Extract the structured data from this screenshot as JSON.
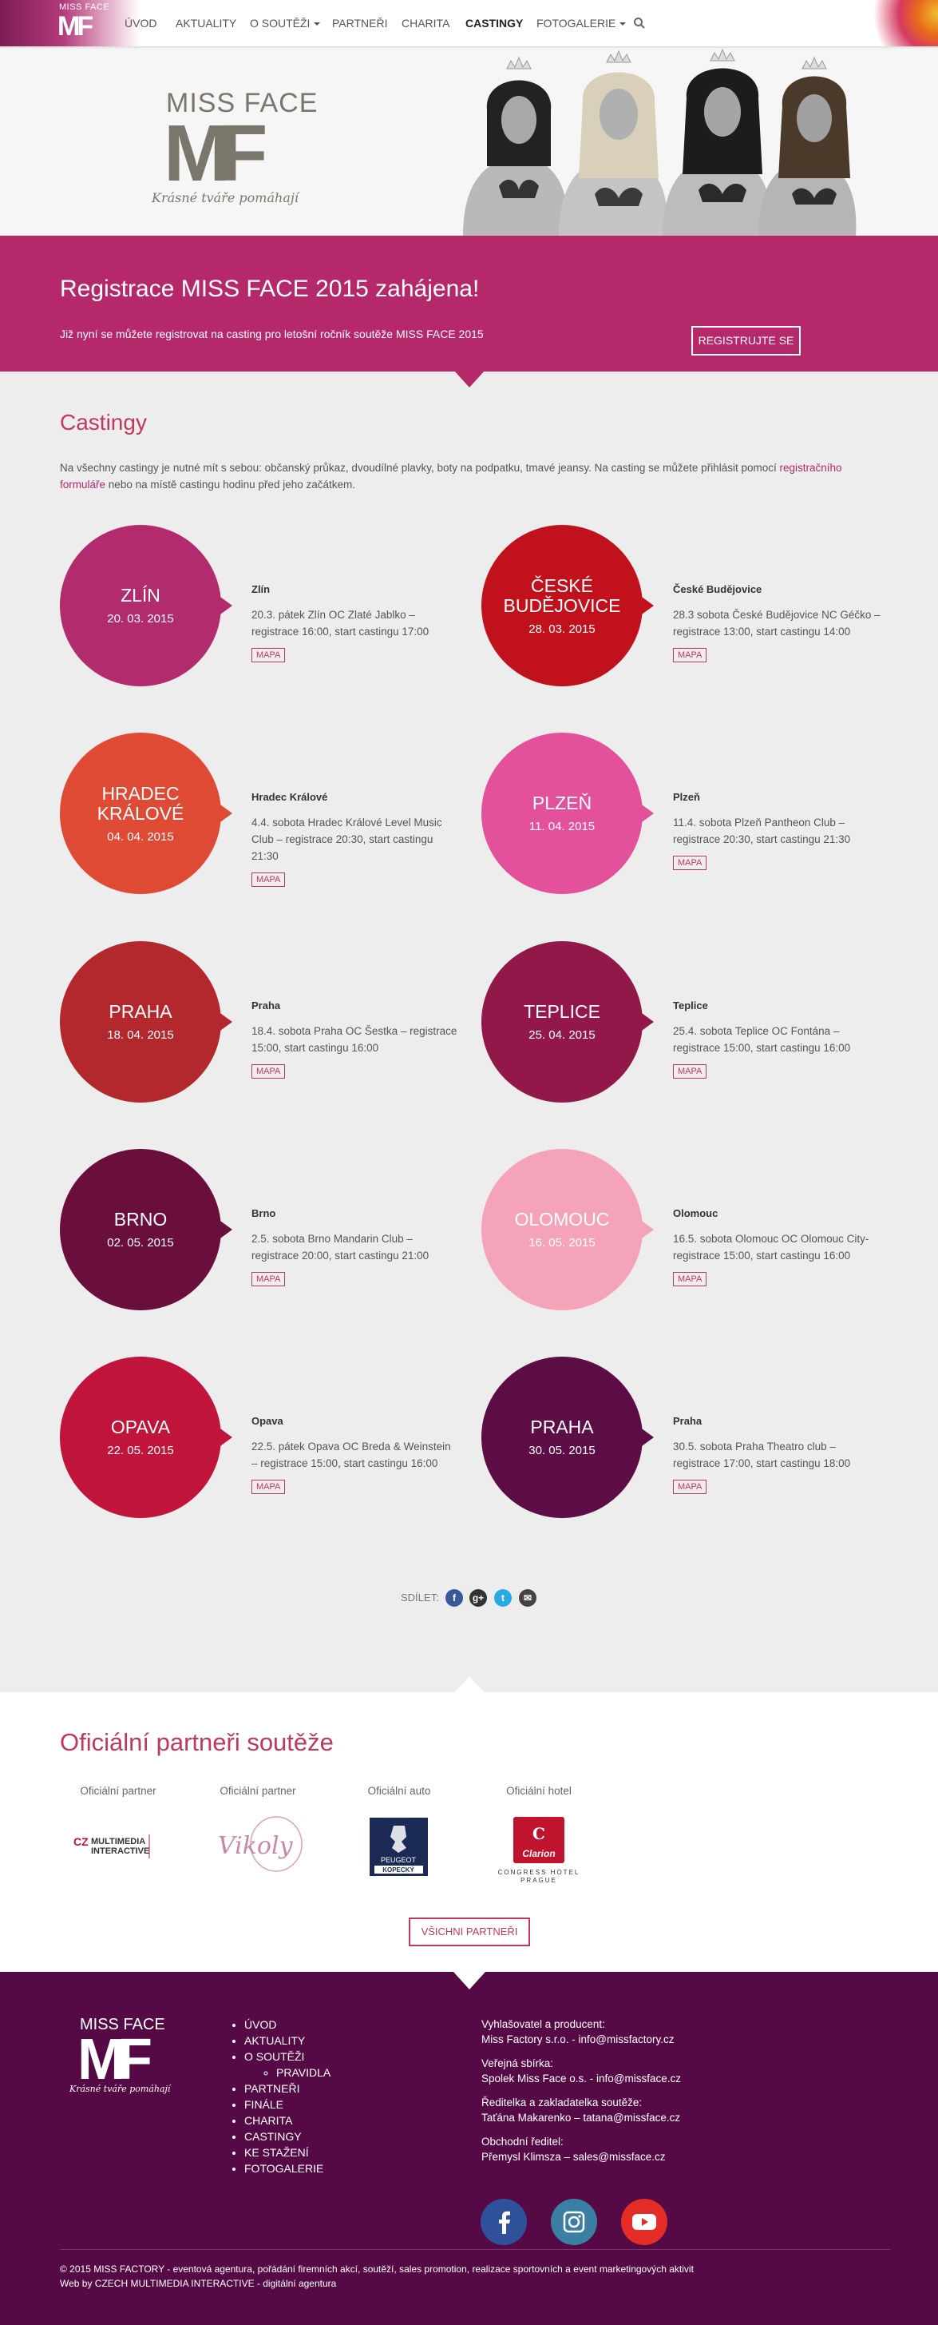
{
  "nav": {
    "logo_small": "MISS FACE",
    "logo_mark": "MF",
    "items": [
      {
        "label": "ÚVOD",
        "dropdown": false,
        "active": false
      },
      {
        "label": "AKTUALITY",
        "dropdown": false,
        "active": false
      },
      {
        "label": "O SOUTĚŽI",
        "dropdown": true,
        "active": false
      },
      {
        "label": "PARTNEŘI",
        "dropdown": false,
        "active": false
      },
      {
        "label": "CHARITA",
        "dropdown": false,
        "active": false
      },
      {
        "label": "CASTINGY",
        "dropdown": false,
        "active": true
      },
      {
        "label": "FOTOGALERIE",
        "dropdown": true,
        "active": false
      }
    ],
    "search_icon": "search-icon"
  },
  "hero": {
    "logo_title": "MISS FACE",
    "logo_mark": "MF",
    "claim": "Krásné tváře pomáhají"
  },
  "registration": {
    "title": "Registrace MISS FACE 2015 zahájena!",
    "text": "Již nyní se můžete registrovat na casting pro letošní ročník soutěže MISS FACE 2015",
    "button": "REGISTRUJTE SE"
  },
  "castings": {
    "title": "Castingy",
    "intro_before": "Na všechny castingy je nutné mít s sebou: občanský průkaz, dvoudílné plavky, boty na podpatku, tmavé jeansy. Na casting se můžete přihlásit pomocí",
    "intro_link": "registračního formuláře",
    "intro_after": "nebo na místě castingu hodinu před jeho začátkem.",
    "map_label": "MAPA",
    "items": [
      {
        "city": "ZLÍN",
        "date": "20. 03. 2015",
        "name": "Zlín",
        "desc": "20.3. pátek Zlín OC Zlaté Jablko – registrace 16:00, start castingu 17:00",
        "color": "#b22b6c"
      },
      {
        "city": "ČESKÉ BUDĚJOVICE",
        "date": "28. 03. 2015",
        "name": "České Budějovice",
        "desc": "28.3 sobota České Budějovice NC Géčko – registrace 13:00, start castingu 14:00",
        "color": "#c1111d"
      },
      {
        "city": "HRADEC KRÁLOVÉ",
        "date": "04. 04. 2015",
        "name": "Hradec Králové",
        "desc": "4.4. sobota Hradec Králové Level Music Club – registrace 20:30, start castingu 21:30",
        "color": "#df4a35"
      },
      {
        "city": "PLZEŇ",
        "date": "11. 04. 2015",
        "name": "Plzeň",
        "desc": "11.4. sobota Plzeň Pantheon Club – registrace 20:30, start castingu 21:30",
        "color": "#e2519a"
      },
      {
        "city": "PRAHA",
        "date": "18. 04. 2015",
        "name": "Praha",
        "desc": "18.4. sobota Praha OC Šestka – registrace 15:00, start castingu 16:00",
        "color": "#b3282d"
      },
      {
        "city": "TEPLICE",
        "date": "25. 04. 2015",
        "name": "Teplice",
        "desc": "25.4. sobota Teplice OC Fontána – registrace 15:00, start castingu 16:00",
        "color": "#93184a"
      },
      {
        "city": "BRNO",
        "date": "02. 05. 2015",
        "name": "Brno",
        "desc": "2.5. sobota Brno Mandarin Club – registrace 20:00, start castingu 21:00",
        "color": "#6a0f3d"
      },
      {
        "city": "OLOMOUC",
        "date": "16. 05. 2015",
        "name": "Olomouc",
        "desc": "16.5. sobota Olomouc OC Olomouc City- registrace 15:00, start castingu 16:00",
        "color": "#f5a3b8"
      },
      {
        "city": "OPAVA",
        "date": "22. 05. 2015",
        "name": "Opava",
        "desc": "22.5. pátek Opava OC Breda & Weinstein – registrace 15:00, start castingu 16:00",
        "color": "#c0143a"
      },
      {
        "city": "PRAHA",
        "date": "30. 05. 2015",
        "name": "Praha",
        "desc": "30.5. sobota Praha Theatro club – registrace 17:00, start castingu 18:00",
        "color": "#5c0d45"
      }
    ]
  },
  "share": {
    "label": "SDÍLET:",
    "icons": [
      {
        "name": "facebook-icon",
        "glyph": "f",
        "color": "#3b5998"
      },
      {
        "name": "google-plus-icon",
        "glyph": "g+",
        "color": "#333333"
      },
      {
        "name": "twitter-icon",
        "glyph": "t",
        "color": "#29a9e1"
      },
      {
        "name": "email-icon",
        "glyph": "✉",
        "color": "#444444"
      }
    ]
  },
  "partners": {
    "title": "Oficiální partneři soutěže",
    "items": [
      {
        "label": "Oficiální partner",
        "logo_text": "CZ MULTIMEDIA INTERACTIVE"
      },
      {
        "label": "Oficiální partner",
        "logo_text": "Vikoly"
      },
      {
        "label": "Oficiální auto",
        "logo_text": "PEUGEOT KOPECKÝ"
      },
      {
        "label": "Oficiální hotel",
        "logo_text": "Clarion CONGRESS HOTEL PRAGUE"
      }
    ],
    "button": "VŠICHNI PARTNEŘI"
  },
  "footer": {
    "logo_title": "MISS FACE",
    "logo_mark": "MF",
    "claim": "Krásné tváře pomáhají",
    "menu": [
      "ÚVOD",
      "AKTUALITY",
      "O SOUTĚŽI",
      "PARTNEŘI",
      "FINÁLE",
      "CHARITA",
      "CASTINGY",
      "KE STAŽENÍ",
      "FOTOGALERIE"
    ],
    "submenu": [
      "PRAVIDLA"
    ],
    "contacts": [
      {
        "label": "Vyhlašovatel a producent:",
        "value": "Miss Factory s.r.o. - info@missfactory.cz"
      },
      {
        "label": "Veřejná sbírka:",
        "value": "Spolek Miss Face o.s. - info@missface.cz"
      },
      {
        "label": "Ředitelka a zakladatelka soutěže:",
        "value": "Taťána Makarenko – tatana@missface.cz"
      },
      {
        "label": "Obchodní ředitel:",
        "value": "Přemysl Klimsza – sales@missface.cz"
      }
    ],
    "social": [
      {
        "name": "facebook-icon",
        "color": "#2f5199"
      },
      {
        "name": "instagram-icon",
        "color": "#3b7fa3"
      },
      {
        "name": "youtube-icon",
        "color": "#e52d27"
      }
    ],
    "copyright": "© 2015 MISS FACTORY - eventová agentura, pořádání firemních akcí, soutěží, sales promotion, realizace sportovních a event marketingových aktivit",
    "webby": "Web by CZECH MULTIMEDIA INTERACTIVE - digitální agentura"
  }
}
